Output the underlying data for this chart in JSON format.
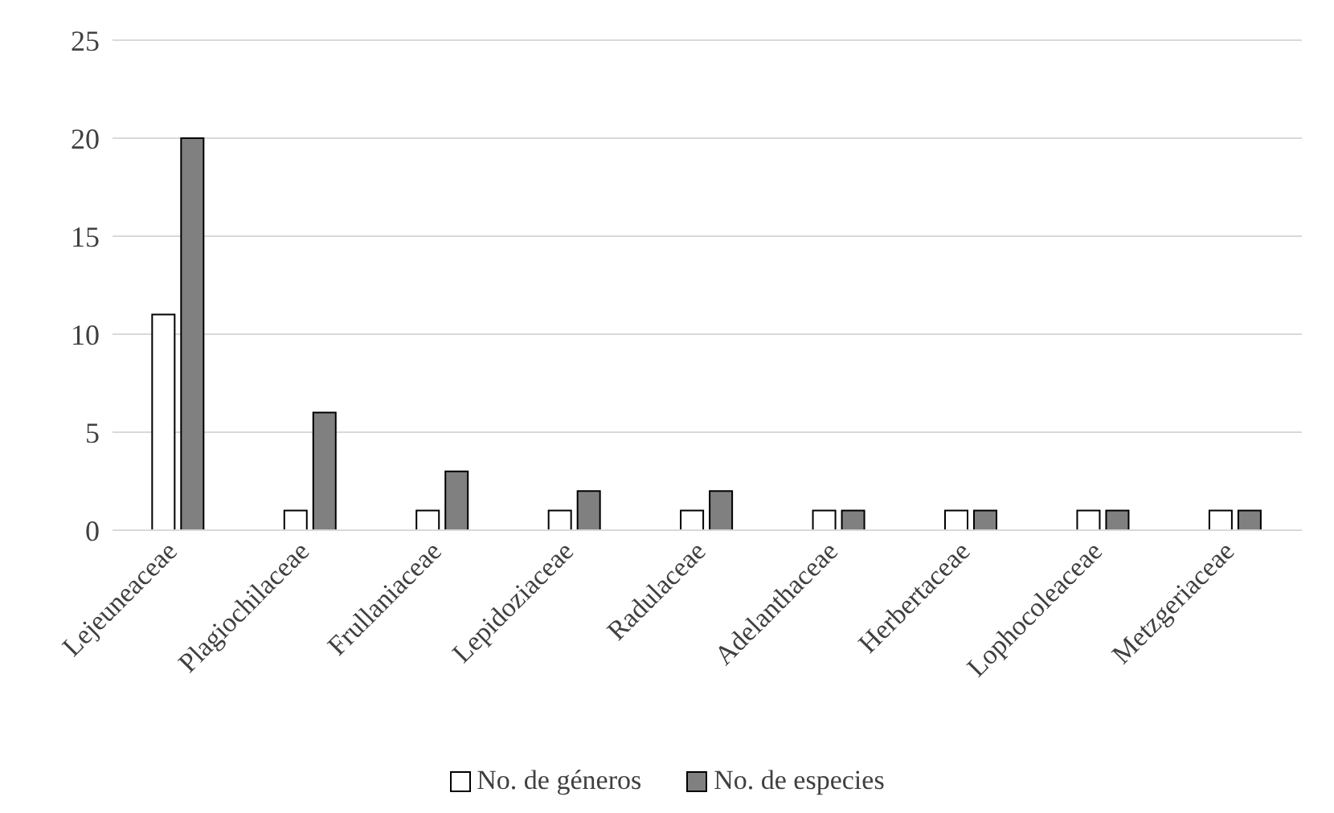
{
  "chart_data": {
    "type": "bar",
    "categories": [
      "Lejeuneaceae",
      "Plagiochilaceae",
      "Frullaniaceae",
      "Lepidoziaceae",
      "Radulaceae",
      "Adelanthaceae",
      "Herbertaceae",
      "Lophocoleaceae",
      "Metzgeriaceae"
    ],
    "series": [
      {
        "name": "No. de géneros",
        "color": "#ffffff",
        "values": [
          11,
          1,
          1,
          1,
          1,
          1,
          1,
          1,
          1
        ]
      },
      {
        "name": "No. de especies",
        "color": "#808080",
        "values": [
          20,
          6,
          3,
          2,
          2,
          1,
          1,
          1,
          1
        ]
      }
    ],
    "ylim": [
      0,
      25
    ],
    "yticks": [
      0,
      5,
      10,
      15,
      20,
      25
    ],
    "grid": "y",
    "legend": "bottom"
  }
}
